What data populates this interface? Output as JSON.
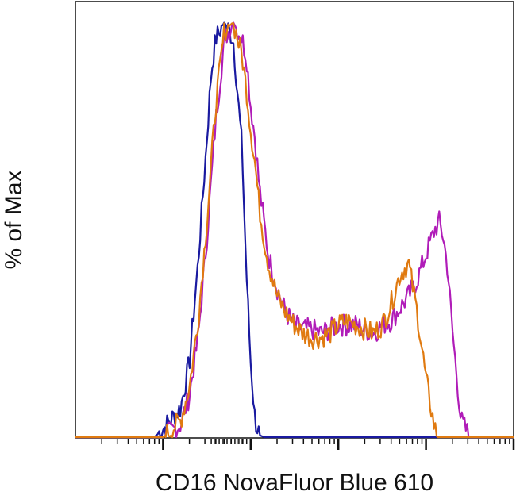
{
  "chart_data": {
    "type": "line",
    "title": "",
    "xlabel": "CD16 NovaFluor Blue 610",
    "ylabel": "% of Max",
    "xscale": "log",
    "xlim": [
      -1,
      4
    ],
    "ylim": [
      0,
      100
    ],
    "grid": false,
    "legend": "none",
    "x": [
      -1.0,
      -0.1,
      0.0,
      0.2,
      0.3,
      0.4,
      0.5,
      0.55,
      0.6,
      0.7,
      0.8,
      0.9,
      0.95,
      1.0,
      1.05,
      1.1,
      1.15,
      1.2,
      1.3,
      1.4,
      1.5,
      1.6,
      1.7,
      1.8,
      1.9,
      2.0,
      2.1,
      2.2,
      2.3,
      2.4,
      2.5,
      2.6,
      2.7,
      2.8,
      2.9,
      3.0,
      3.1,
      3.15,
      3.2,
      3.25,
      3.3,
      3.4,
      3.5,
      3.6,
      3.7,
      4.0
    ],
    "series": [
      {
        "color": "#1a1aa0",
        "values": [
          0,
          0,
          2,
          7,
          18,
          42,
          72,
          88,
          96,
          100,
          96,
          70,
          40,
          18,
          4,
          0.5,
          0,
          0,
          0,
          0,
          0,
          0,
          0,
          0,
          0,
          0,
          0,
          0,
          0,
          0,
          0,
          0,
          0,
          0,
          0,
          0,
          0,
          0,
          0,
          0,
          0,
          0,
          0,
          0,
          0,
          0
        ]
      },
      {
        "color": "#b01cb8",
        "values": [
          0,
          0,
          0,
          3,
          10,
          24,
          48,
          62,
          76,
          96,
          100,
          96,
          92,
          80,
          72,
          60,
          52,
          44,
          36,
          30,
          27,
          26,
          26,
          25,
          26,
          27,
          27,
          27,
          26,
          25,
          27,
          28,
          31,
          34,
          38,
          44,
          50,
          52,
          48,
          40,
          26,
          4,
          0,
          0,
          0,
          0
        ]
      },
      {
        "color": "#e07a10",
        "values": [
          0,
          0,
          0,
          4,
          12,
          28,
          52,
          66,
          80,
          98,
          100,
          92,
          84,
          74,
          66,
          55,
          48,
          42,
          34,
          30,
          27,
          25,
          24,
          24,
          25,
          27,
          28,
          27,
          26,
          25,
          27,
          32,
          39,
          42,
          30,
          14,
          2,
          0,
          0,
          0,
          0,
          0,
          0,
          0,
          0,
          0
        ]
      }
    ]
  }
}
